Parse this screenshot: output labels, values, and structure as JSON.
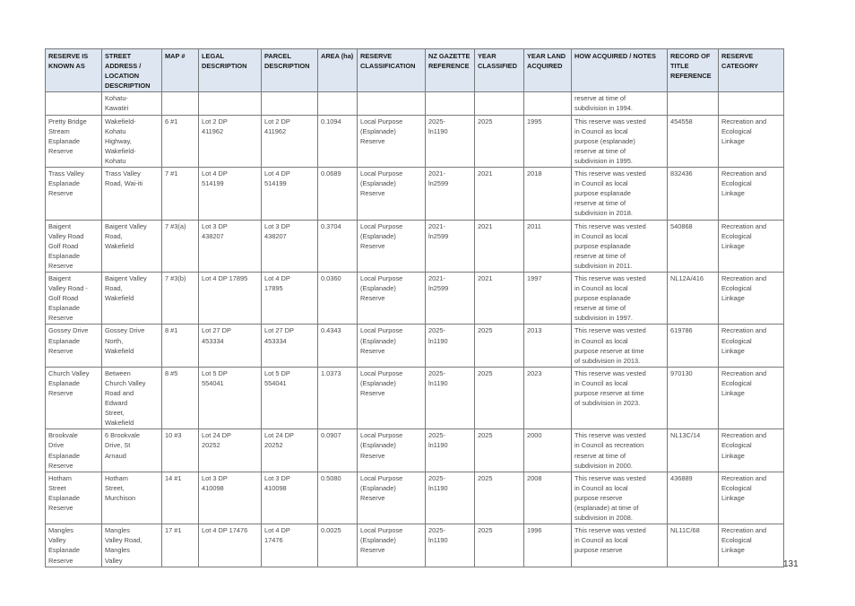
{
  "headers": [
    "RESERVE IS KNOWN AS",
    "STREET ADDRESS / LOCATION DESCRIPTION",
    "MAP #",
    "LEGAL DESCRIPTION",
    "PARCEL DESCRIPTION",
    "AREA (ha)",
    "RESERVE CLASSIFICATION",
    "NZ GAZETTE REFERENCE",
    "YEAR CLASSIFIED",
    "YEAR LAND ACQUIRED",
    "HOW ACQUIRED / NOTES",
    "RECORD OF TITLE REFERENCE",
    "RESERVE CATEGORY"
  ],
  "rows": [
    [
      "",
      "Kohatu-\nKawatiri",
      "",
      "",
      "",
      "",
      "",
      "",
      "",
      "",
      "reserve at time of\nsubdivision in 1994.",
      "",
      ""
    ],
    [
      "Pretty Bridge\nStream\nEsplanade\nReserve",
      " Wakefield-\nKohatu\nHighway,\nWakefield-\nKohatu",
      "6 #1",
      "Lot 2 DP\n411962",
      "Lot 2 DP\n411962",
      "0.1094",
      "Local Purpose\n(Esplanade)\nReserve",
      "2025-\nln1190",
      "2025",
      "1995",
      "This reserve was vested\nin Council as local\npurpose (esplanade)\nreserve at time of\nsubdivision in 1995.",
      "454558",
      "Recreation and\nEcological\nLinkage"
    ],
    [
      "Trass Valley\nEsplanade\nReserve",
      " Trass Valley\nRoad, Wai-iti",
      "7 #1",
      "Lot 4 DP\n514199",
      "Lot 4 DP\n514199",
      "0.0689",
      "Local Purpose\n(Esplanade)\nReserve",
      "2021-\nln2599",
      "2021",
      "2018",
      "This reserve was vested\nin Council as local\npurpose esplanade\nreserve at time of\nsubdivision in 2018.",
      "832436",
      "Recreation and\nEcological\nLinkage"
    ],
    [
      "Baigent\nValley Road\nGolf Road\nEsplanade\nReserve",
      " Baigent Valley\nRoad,\nWakefield",
      "7 #3(a)",
      "Lot 3 DP\n438207",
      "Lot 3 DP\n438207",
      "0.3704",
      "Local Purpose\n(Esplanade)\nReserve",
      "2021-\nln2599",
      "2021",
      "2011",
      "This reserve was vested\nin Council as local\npurpose esplanade\nreserve at time of\nsubdivision in 2011.",
      "540868",
      "Recreation and\nEcological\nLinkage"
    ],
    [
      "Baigent\nValley Road -\nGolf Road\nEsplanade\nReserve",
      " Baigent Valley\nRoad,\nWakefield",
      "7 #3(b)",
      "Lot 4 DP 17895",
      "Lot 4 DP\n17895",
      "0.0360",
      "Local Purpose\n(Esplanade)\nReserve",
      "2021-\nln2599",
      "2021",
      "1997",
      "This reserve was vested\nin Council as local\npurpose esplanade\nreserve at time of\nsubdivision in 1997.",
      "NL12A/416",
      "Recreation and\nEcological\nLinkage"
    ],
    [
      "Gossey Drive\nEsplanade\nReserve",
      "Gossey Drive\nNorth,\nWakefield",
      "8 #1",
      "Lot 27 DP\n453334",
      "Lot 27 DP\n453334",
      "0.4343",
      "Local Purpose\n(Esplanade)\nReserve",
      "2025-\nln1190",
      "2025",
      "2013",
      "This reserve was vested\nin Council as local\npurpose reserve at time\nof subdivision in 2013.",
      "619786",
      "Recreation and\nEcological\nLinkage"
    ],
    [
      "Church Valley\nEsplanade\nReserve",
      "Between\nChurch Valley\nRoad and\nEdward\nStreet,\nWakefield",
      "8 #5",
      "Lot 5 DP\n554041",
      "Lot 5 DP\n554041",
      "1.0373",
      "Local Purpose\n(Esplanade)\nReserve",
      "2025-\nln1190",
      "2025",
      "2023",
      "This reserve was vested\nin Council as local\npurpose reserve at time\nof subdivision in 2023.",
      "970130",
      "Recreation and\nEcological\nLinkage"
    ],
    [
      "Brookvale\nDrive\nEsplanade\nReserve",
      "6 Brookvale\nDrive, St\nArnaud",
      "10 #3",
      "Lot 24 DP\n20252",
      "Lot 24 DP\n20252",
      "0.0907",
      "Local Purpose\n(Esplanade)\nReserve",
      "2025-\nln1190",
      "2025",
      "2000",
      "This reserve was vested\nin Council as recreation\nreserve at time of\nsubdivision in 2000.",
      "NL13C/14",
      "Recreation and\nEcological\nLinkage"
    ],
    [
      "Hotham\nStreet\nEsplanade\nReserve",
      " Hotham\nStreet,\nMurchison",
      "14 #1",
      "Lot 3 DP\n410098",
      "Lot 3 DP\n410098",
      "0.5080",
      "Local Purpose\n(Esplanade)\nReserve",
      "2025-\nln1190",
      "2025",
      "2008",
      "This reserve was vested\nin Council as local\npurpose reserve\n(esplanade) at time of\nsubdivision in 2008.",
      "436889",
      "Recreation and\nEcological\nLinkage"
    ],
    [
      "Mangles\nValley\nEsplanade\nReserve",
      " Mangles\nValley Road,\nMangles\nValley",
      "17 #1",
      "Lot 4 DP 17476",
      "Lot 4 DP\n17476",
      "0.0025",
      "Local Purpose\n(Esplanade)\nReserve",
      "2025-\nln1190",
      "2025",
      "1996",
      "This reserve was vested\nin Council as local\npurpose reserve",
      "NL11C/68",
      "Recreation and\nEcological\nLinkage"
    ]
  ],
  "page_number": "131"
}
